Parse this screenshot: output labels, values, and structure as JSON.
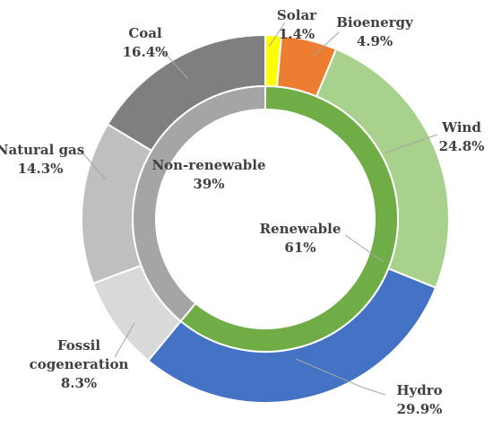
{
  "chart_data": {
    "type": "pie",
    "title": "",
    "inner_ring": {
      "labels": [
        "Renewable",
        "Non-renewable"
      ],
      "values": [
        61,
        39
      ],
      "value_labels": [
        "61%",
        "39%"
      ],
      "colors": [
        "#70ad47",
        "#a5a5a5"
      ]
    },
    "outer_ring": {
      "labels": [
        "Solar",
        "Bioenergy",
        "Wind",
        "Hydro",
        "Fossil cogeneration",
        "Natural gas",
        "Coal"
      ],
      "values": [
        1.4,
        4.9,
        24.8,
        29.9,
        8.3,
        14.3,
        16.4
      ],
      "value_labels": [
        "1.4%",
        "4.9%",
        "24.8%",
        "29.9%",
        "8.3%",
        "14.3%",
        "16.4%"
      ],
      "colors": [
        "#ffff00",
        "#ed7d31",
        "#a9d18e",
        "#4472c4",
        "#d9d9d9",
        "#bfbfbf",
        "#7f7f7f"
      ]
    }
  }
}
